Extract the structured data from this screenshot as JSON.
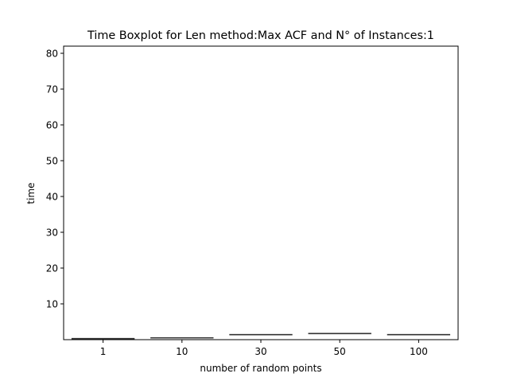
{
  "chart_data": {
    "type": "box",
    "title": "Time Boxplot for Len method:Max ACF and N° of Instances:1",
    "xlabel": "number of random points",
    "ylabel": "time",
    "categories": [
      "1",
      "10",
      "30",
      "50",
      "100"
    ],
    "values": [
      0.3,
      0.5,
      1.4,
      1.7,
      1.4
    ],
    "ylim": [
      0,
      82
    ],
    "yticks": [
      10,
      20,
      30,
      40,
      50,
      60,
      70,
      80
    ],
    "grid": false,
    "legend": "none"
  },
  "colors": {
    "box_line": "#333333",
    "axes": "#000000",
    "background": "#ffffff"
  }
}
